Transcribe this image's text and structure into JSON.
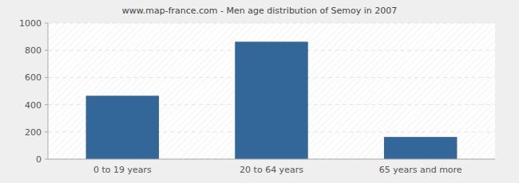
{
  "chart_data": {
    "type": "bar",
    "title": "www.map-france.com - Men age distribution of Semoy in 2007",
    "categories": [
      "0 to 19 years",
      "20 to 64 years",
      "65 years and more"
    ],
    "values": [
      466,
      863,
      163
    ],
    "color": "#336699",
    "ylim": [
      0,
      1000
    ],
    "yticks": [
      0,
      200,
      400,
      600,
      800,
      1000
    ],
    "grid": true
  }
}
